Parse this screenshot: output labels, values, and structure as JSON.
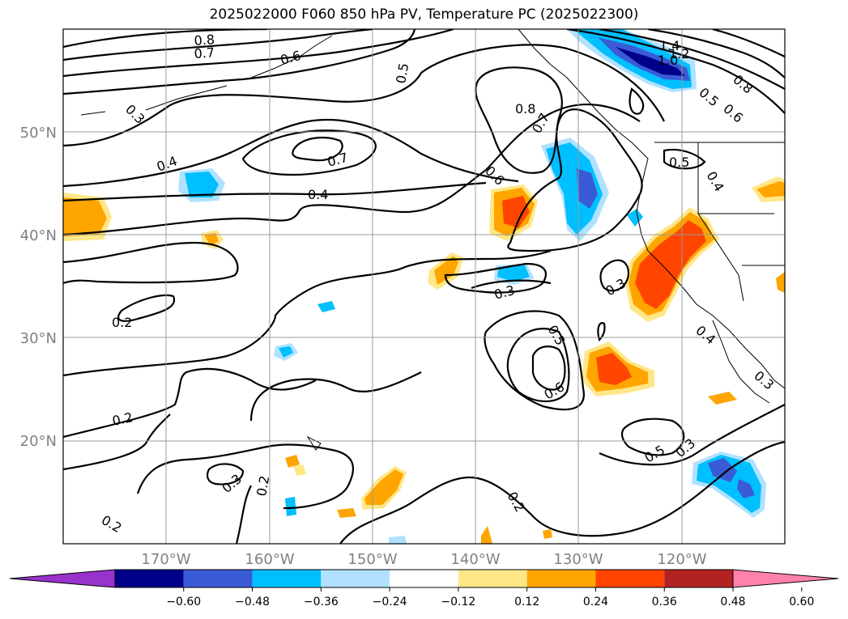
{
  "title": "2025022000 F060 850 hPa PV, Temperature PC (2025022300)",
  "lat_labels": [
    "50°N",
    "40°N",
    "30°N",
    "20°N"
  ],
  "lon_labels": [
    "170°W",
    "160°W",
    "150°W",
    "140°W",
    "130°W",
    "120°W"
  ],
  "colorbar": {
    "ticks": [
      "−0.60",
      "−0.48",
      "−0.36",
      "−0.24",
      "−0.12",
      "0.12",
      "0.24",
      "0.36",
      "0.48",
      "0.60"
    ],
    "colors": [
      "#9932cc",
      "#00008b",
      "#3a5bd6",
      "#00bfff",
      "#b0e2ff",
      "#ffffff",
      "#ffe787",
      "#ffa500",
      "#ff4500",
      "#b22222",
      "#ff82ab"
    ]
  },
  "contour_labels": [
    "0.8",
    "0.7",
    "0.6",
    "0.5",
    "0.3",
    "0.4",
    "0.7",
    "0.4",
    "0.8",
    "0.7",
    "0.6",
    "1.4",
    "1.2",
    "1.0",
    "0.8",
    "0.6",
    "0.5",
    "0.5",
    "0.4",
    "0.2",
    "0.3",
    "0.5",
    "0.6",
    "0.3",
    "0.4",
    "0.3",
    "0.2",
    "0.3",
    "0.2",
    "0.2",
    "0.2",
    "0.5",
    "0.3"
  ]
}
